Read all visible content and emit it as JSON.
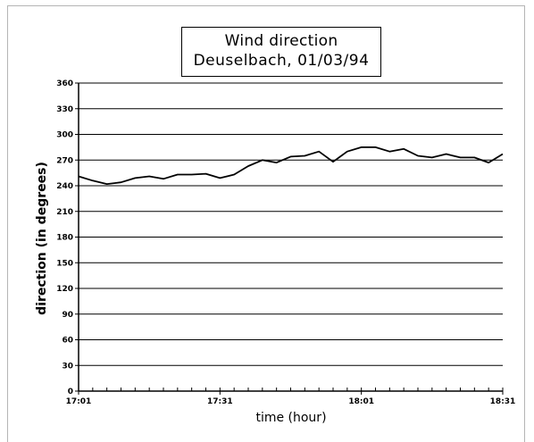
{
  "chart_data": {
    "type": "line",
    "title_line1": "Wind direction",
    "title_line2": "Deuselbach,  01/03/94",
    "xlabel": "time (hour)",
    "ylabel": "direction (in degrees)",
    "xlim_minutes": [
      0,
      90
    ],
    "ylim": [
      0,
      360
    ],
    "y_ticks": [
      0,
      30,
      60,
      90,
      120,
      150,
      180,
      210,
      240,
      270,
      300,
      330,
      360
    ],
    "y_tick_labels": [
      "0",
      "30",
      "60",
      "90",
      "120",
      "150",
      "180",
      "210",
      "240",
      "270",
      "300",
      "330",
      "360"
    ],
    "x_tick_labels": [
      {
        "minute": 0,
        "label": "17:01"
      },
      {
        "minute": 30,
        "label": "17:31"
      },
      {
        "minute": 60,
        "label": "18:01"
      },
      {
        "minute": 90,
        "label": "18:31"
      }
    ],
    "x_minor_ticks_every": 3,
    "grid": "horizontal",
    "series": [
      {
        "x": [
          0,
          3,
          6,
          9,
          12,
          15,
          18,
          21,
          24,
          27,
          30,
          33,
          36,
          39,
          42,
          45,
          48,
          51,
          54,
          57,
          60,
          63,
          66,
          69,
          72,
          75,
          78,
          81,
          84,
          87,
          90
        ],
        "y": [
          251,
          246,
          242,
          244,
          249,
          251,
          248,
          253,
          253,
          254,
          249,
          253,
          263,
          270,
          267,
          274,
          275,
          280,
          268,
          280,
          285,
          285,
          280,
          283,
          275,
          273,
          277,
          273,
          273,
          267,
          277
        ]
      }
    ]
  }
}
